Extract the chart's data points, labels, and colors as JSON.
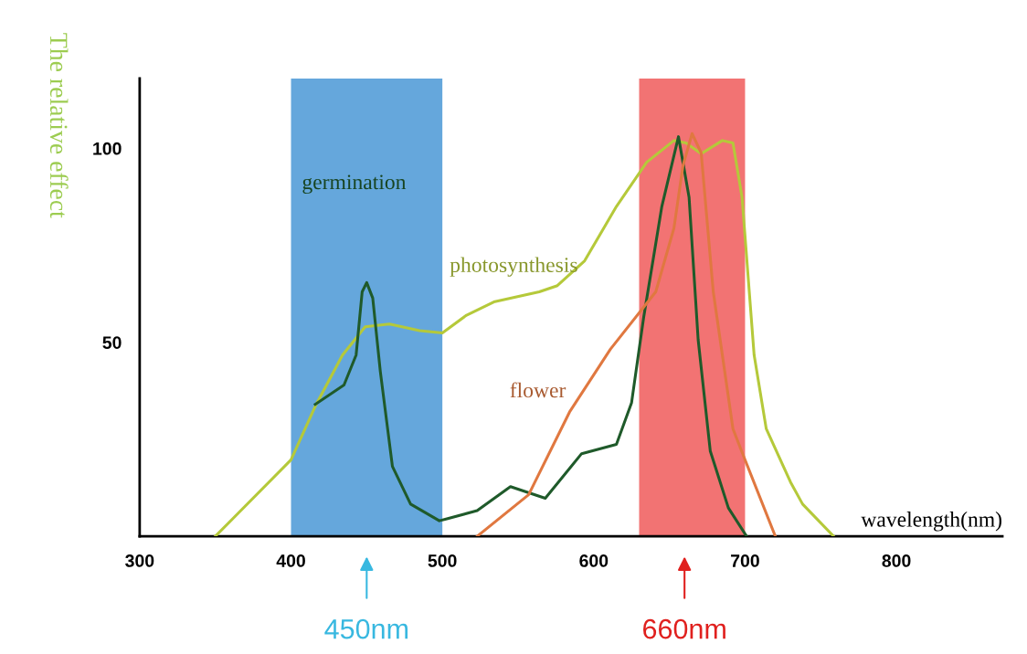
{
  "chart_data": {
    "type": "line",
    "xlabel": "wavelength(nm)",
    "ylabel": "The relative effect",
    "xlim": [
      300,
      870
    ],
    "xticks": [
      300,
      400,
      500,
      600,
      700,
      800
    ],
    "ylim": [
      0,
      118
    ],
    "yticks": [
      50,
      100
    ],
    "grid": false,
    "legend": false,
    "marker": "none",
    "line_style": "solid",
    "series": [
      {
        "name": "photosynthesis",
        "color": "#b5c93a",
        "x": [
          350,
          400,
          416,
          434,
          449,
          465,
          485,
          500,
          516,
          534,
          564,
          576,
          594,
          615,
          635,
          653,
          661,
          671,
          685,
          692,
          698,
          706,
          714,
          730,
          738,
          758.5
        ],
        "values": [
          0,
          19.7,
          33.5,
          46.7,
          54,
          54.7,
          53,
          52.4,
          57,
          60.4,
          63,
          64.6,
          71,
          85,
          96.4,
          102,
          101.4,
          98.6,
          102,
          101.4,
          87.4,
          46.7,
          27.7,
          14,
          8.3,
          0
        ]
      },
      {
        "name": "germination",
        "color": "#1f5a2a",
        "x": [
          416,
          435,
          443,
          447,
          450,
          454,
          459,
          467,
          479,
          498,
          503,
          523,
          545,
          568,
          592,
          615,
          625,
          633,
          645,
          656,
          663,
          669,
          677,
          689,
          701
        ],
        "values": [
          34,
          39,
          46.7,
          63,
          65.4,
          61.4,
          42.5,
          18,
          8.3,
          4,
          4.5,
          6.6,
          12.8,
          9.8,
          21.3,
          23.7,
          34.4,
          56.4,
          85,
          103,
          87.4,
          50.7,
          22,
          7.3,
          0
        ]
      },
      {
        "name": "flower",
        "color": "#e07840",
        "x": [
          523,
          557,
          584,
          611,
          641,
          653,
          659,
          665,
          671,
          679,
          692,
          700,
          720
        ],
        "values": [
          0,
          10.7,
          32,
          48.2,
          63,
          79.4,
          95.6,
          103.8,
          98.8,
          63,
          27.7,
          19.7,
          0
        ]
      }
    ],
    "bands": [
      {
        "axis": "x",
        "from": 400,
        "to": 500,
        "color": "#4a98d6"
      },
      {
        "axis": "x",
        "from": 630,
        "to": 700,
        "color": "#f05a5a"
      }
    ],
    "annotations": [
      {
        "text": "450nm",
        "x": 450,
        "y": 0
      },
      {
        "text": "660nm",
        "x": 660,
        "y": 0
      }
    ]
  }
}
